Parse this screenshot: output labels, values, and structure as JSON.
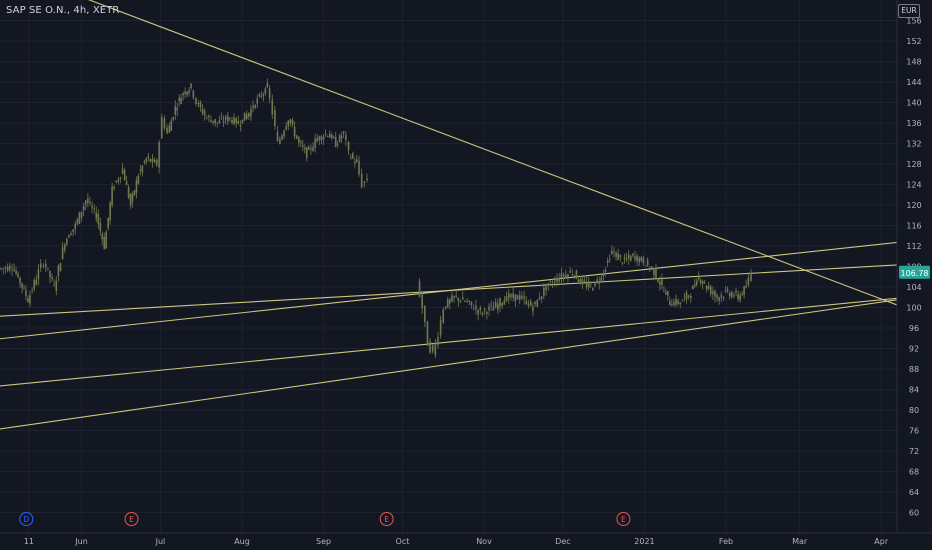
{
  "symbol_line": "SAP SE O.N., 4h, XETR",
  "currency": "EUR",
  "colors": {
    "background": "#131722",
    "grid": "#1e222d",
    "trendline": "#e3d98a",
    "candle": "#6f7a52",
    "price_label_bg": "#26a69a",
    "axis_text": "#b2b5be"
  },
  "chart_data": {
    "type": "candlestick",
    "title": "SAP SE O.N., 4h, XETR",
    "xlabel": "",
    "ylabel": "",
    "ylim": [
      56,
      160
    ],
    "y_ticks": [
      "60",
      "64",
      "68",
      "72",
      "76",
      "80",
      "84",
      "88",
      "92",
      "96",
      "100",
      "104",
      "108",
      "112",
      "116",
      "120",
      "124",
      "128",
      "132",
      "136",
      "140",
      "144",
      "148",
      "152",
      "156"
    ],
    "x_ticks": [
      "11",
      "Jun",
      "Jul",
      "Aug",
      "Sep",
      "Oct",
      "Nov",
      "Dec",
      "2021",
      "Feb",
      "Mar",
      "Apr"
    ],
    "x_tick_days": [
      -20,
      0,
      30,
      61,
      92,
      122,
      153,
      183,
      214,
      245,
      273,
      304
    ],
    "x_range_days": [
      -31,
      310
    ],
    "last_price": "106.78",
    "events": [
      {
        "label": "D",
        "day": -21,
        "color": "#2962ff"
      },
      {
        "label": "E",
        "day": 19,
        "color": "#ef5350"
      },
      {
        "label": "E",
        "day": 116,
        "color": "#ef5350"
      },
      {
        "label": "E",
        "day": 206,
        "color": "#ef5350"
      }
    ],
    "series": [
      {
        "name": "",
        "points": [
          [
            -31,
            107.5
          ],
          [
            -26,
            108
          ],
          [
            -23,
            105
          ],
          [
            -20,
            101.5
          ],
          [
            -16,
            107
          ],
          [
            -14,
            109
          ],
          [
            -10,
            104
          ],
          [
            -6,
            113
          ],
          [
            -2,
            116
          ],
          [
            2,
            121
          ],
          [
            6,
            118
          ],
          [
            9,
            112
          ],
          [
            12,
            123
          ],
          [
            16,
            127
          ],
          [
            19,
            120
          ],
          [
            22,
            126
          ],
          [
            25,
            129
          ],
          [
            29,
            128
          ],
          [
            31,
            137
          ],
          [
            33,
            134
          ],
          [
            36,
            139
          ],
          [
            39,
            142
          ],
          [
            42,
            143
          ],
          [
            44,
            140
          ],
          [
            48,
            137
          ],
          [
            52,
            136
          ],
          [
            56,
            137
          ],
          [
            60,
            136
          ],
          [
            64,
            138
          ],
          [
            68,
            141
          ],
          [
            71,
            143
          ],
          [
            73,
            138
          ],
          [
            75,
            132
          ],
          [
            79,
            137
          ],
          [
            83,
            132
          ],
          [
            86,
            130
          ],
          [
            90,
            133
          ],
          [
            94,
            134
          ],
          [
            97,
            132
          ],
          [
            100,
            134
          ],
          [
            102,
            130
          ],
          [
            105,
            128
          ],
          [
            107,
            124
          ],
          [
            109,
            125
          ]
        ]
      },
      {
        "name": "",
        "points": [
          [
            128,
            105
          ],
          [
            130,
            100
          ],
          [
            132,
            93
          ],
          [
            134,
            91
          ],
          [
            136,
            95
          ],
          [
            138,
            100
          ],
          [
            142,
            102
          ],
          [
            147,
            101
          ],
          [
            152,
            99
          ],
          [
            157,
            100
          ],
          [
            162,
            102
          ],
          [
            167,
            102
          ],
          [
            172,
            100
          ],
          [
            177,
            104
          ],
          [
            182,
            106
          ],
          [
            187,
            107
          ],
          [
            190,
            105
          ],
          [
            194,
            104
          ],
          [
            198,
            106
          ],
          [
            202,
            111
          ],
          [
            206,
            109
          ],
          [
            210,
            110
          ],
          [
            214,
            109
          ],
          [
            218,
            107
          ],
          [
            221,
            104
          ],
          [
            224,
            101
          ],
          [
            228,
            101
          ],
          [
            232,
            103
          ],
          [
            235,
            106
          ],
          [
            238,
            104
          ],
          [
            242,
            102
          ],
          [
            246,
            103
          ],
          [
            250,
            102
          ],
          [
            253,
            104
          ],
          [
            255,
            106.78
          ]
        ]
      }
    ],
    "trendlines": [
      {
        "from": [
          -31,
          166.6
        ],
        "to": [
          310,
          100.5
        ]
      },
      {
        "from": [
          -31,
          98.3
        ],
        "to": [
          310,
          108.3
        ]
      },
      {
        "from": [
          -31,
          93.9
        ],
        "to": [
          310,
          112.7
        ]
      },
      {
        "from": [
          -31,
          84.7
        ],
        "to": [
          310,
          101.8
        ]
      },
      {
        "from": [
          -31,
          76.3
        ],
        "to": [
          310,
          101.5
        ]
      }
    ]
  }
}
